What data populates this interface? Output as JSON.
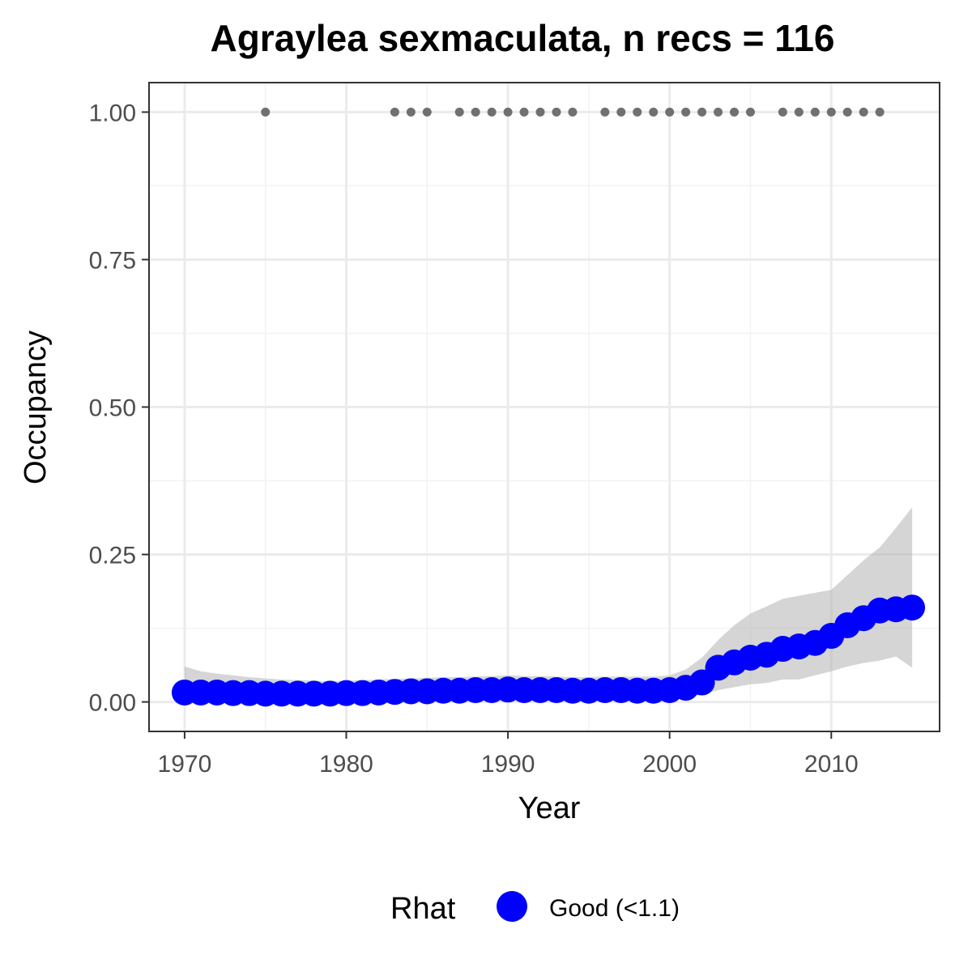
{
  "chart_data": {
    "type": "line",
    "title": "Agraylea sexmaculata, n recs = 116",
    "xlabel": "Year",
    "ylabel": "Occupancy",
    "xlim": [
      1967.8,
      2016.7
    ],
    "ylim": [
      -0.05,
      1.05
    ],
    "x_ticks": [
      1970,
      1980,
      1990,
      2000,
      2010
    ],
    "y_ticks": [
      0.0,
      0.25,
      0.5,
      0.75,
      1.0
    ],
    "y_tick_labels": [
      "0.00",
      "0.25",
      "0.50",
      "0.75",
      "1.00"
    ],
    "grid": true,
    "series": [
      {
        "rhat": "Good (<1.1)",
        "color": "#0000ff",
        "x": [
          1970,
          1971,
          1972,
          1973,
          1974,
          1975,
          1976,
          1977,
          1978,
          1979,
          1980,
          1981,
          1982,
          1983,
          1984,
          1985,
          1986,
          1987,
          1988,
          1989,
          1990,
          1991,
          1992,
          1993,
          1994,
          1995,
          1996,
          1997,
          1998,
          1999,
          2000,
          2001,
          2002,
          2003,
          2004,
          2005,
          2006,
          2007,
          2008,
          2009,
          2010,
          2011,
          2012,
          2013,
          2014,
          2015
        ],
        "y": [
          0.016,
          0.016,
          0.016,
          0.015,
          0.015,
          0.014,
          0.014,
          0.014,
          0.014,
          0.014,
          0.015,
          0.015,
          0.016,
          0.017,
          0.018,
          0.018,
          0.019,
          0.019,
          0.02,
          0.02,
          0.021,
          0.02,
          0.02,
          0.02,
          0.019,
          0.019,
          0.02,
          0.02,
          0.019,
          0.019,
          0.02,
          0.024,
          0.033,
          0.058,
          0.067,
          0.075,
          0.08,
          0.09,
          0.094,
          0.1,
          0.112,
          0.13,
          0.142,
          0.155,
          0.157,
          0.16
        ],
        "lower": [
          0.002,
          0.002,
          0.002,
          0.002,
          0.002,
          0.002,
          0.002,
          0.002,
          0.002,
          0.002,
          0.002,
          0.002,
          0.003,
          0.003,
          0.003,
          0.003,
          0.004,
          0.004,
          0.004,
          0.005,
          0.005,
          0.005,
          0.005,
          0.005,
          0.005,
          0.005,
          0.005,
          0.005,
          0.005,
          0.005,
          0.006,
          0.008,
          0.012,
          0.02,
          0.025,
          0.03,
          0.032,
          0.038,
          0.038,
          0.045,
          0.052,
          0.06,
          0.066,
          0.07,
          0.077,
          0.058
        ],
        "upper": [
          0.06,
          0.052,
          0.048,
          0.045,
          0.042,
          0.04,
          0.038,
          0.037,
          0.036,
          0.035,
          0.036,
          0.037,
          0.038,
          0.039,
          0.04,
          0.041,
          0.042,
          0.042,
          0.043,
          0.044,
          0.045,
          0.044,
          0.044,
          0.043,
          0.042,
          0.042,
          0.043,
          0.043,
          0.043,
          0.043,
          0.045,
          0.055,
          0.075,
          0.105,
          0.13,
          0.15,
          0.162,
          0.175,
          0.18,
          0.185,
          0.19,
          0.215,
          0.24,
          0.262,
          0.295,
          0.33
        ]
      }
    ],
    "records": {
      "color": "#707070",
      "y": 1.0,
      "years": [
        1975,
        1983,
        1984,
        1985,
        1987,
        1988,
        1989,
        1990,
        1991,
        1992,
        1993,
        1994,
        1996,
        1997,
        1998,
        1999,
        2000,
        2001,
        2002,
        2003,
        2004,
        2005,
        2007,
        2008,
        2009,
        2010,
        2011,
        2012,
        2013
      ]
    },
    "legend": {
      "title": "Rhat",
      "position": "bottom",
      "entries": [
        {
          "label": "Good (<1.1)",
          "color": "#0000ff"
        }
      ]
    }
  }
}
